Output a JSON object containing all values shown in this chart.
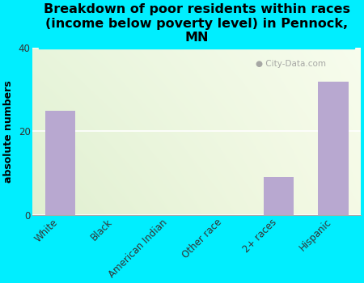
{
  "categories": [
    "White",
    "Black",
    "American Indian",
    "Other race",
    "2+ races",
    "Hispanic"
  ],
  "values": [
    25,
    0,
    0,
    0,
    9,
    32
  ],
  "bar_color": "#b8a8d0",
  "title": "Breakdown of poor residents within races\n(income below poverty level) in Pennock,\nMN",
  "ylabel": "absolute numbers",
  "ylim": [
    0,
    40
  ],
  "yticks": [
    0,
    20,
    40
  ],
  "background_color": "#00eeff",
  "plot_bg_color_tl": "#e8f5d8",
  "plot_bg_color_tr": "#f0f8e8",
  "plot_bg_color_br": "#f8f8e0",
  "title_fontsize": 11.5,
  "axis_label_fontsize": 9,
  "tick_fontsize": 8.5,
  "watermark": "City-Data.com"
}
